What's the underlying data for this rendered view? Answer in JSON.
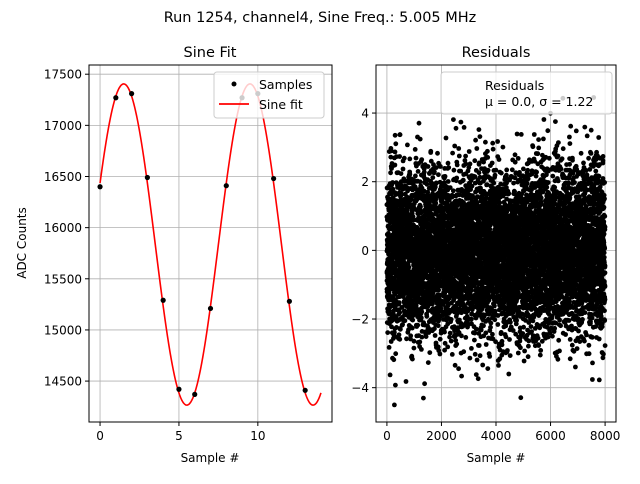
{
  "suptitle": "Run 1254, channel4, Sine Freq.: 5.005 MHz",
  "chart_data": [
    {
      "type": "line",
      "title": "Sine Fit",
      "xlabel": "Sample #",
      "ylabel": "ADC Counts",
      "xlim": [
        -0.7,
        14.7
      ],
      "ylim": [
        14100,
        17590
      ],
      "xticks": [
        0,
        5,
        10
      ],
      "xtick_labels": [
        "0",
        "5",
        "10"
      ],
      "yticks": [
        14500,
        15000,
        15500,
        16000,
        16500,
        17000,
        17500
      ],
      "ytick_labels": [
        "14500",
        "15000",
        "15500",
        "16000",
        "16500",
        "17000",
        "17500"
      ],
      "grid": true,
      "legend": {
        "placement": "top-right",
        "entries": [
          "Samples",
          "Sine fit"
        ]
      },
      "series": [
        {
          "name": "Samples",
          "style": "scatter",
          "color": "#000000",
          "x": [
            0,
            1,
            2,
            3,
            4,
            5,
            6,
            7,
            8,
            9,
            10,
            11,
            12,
            13
          ],
          "y": [
            16400,
            17270,
            17310,
            16490,
            15290,
            14420,
            14370,
            15210,
            16410,
            17270,
            17310,
            16480,
            15280,
            14410
          ]
        },
        {
          "name": "Sine fit",
          "style": "line",
          "color": "#ff0000",
          "x_range": [
            0,
            14
          ],
          "offset": 15835,
          "amplitude": 1570,
          "period": 8,
          "phase_shift": -0.5
        }
      ]
    },
    {
      "type": "scatter",
      "title": "Residuals",
      "xlabel": "Sample #",
      "ylabel": "",
      "xlim": [
        -400,
        8400
      ],
      "ylim": [
        -5,
        5.4
      ],
      "xticks": [
        0,
        2000,
        4000,
        6000,
        8000
      ],
      "xtick_labels": [
        "0",
        "2000",
        "4000",
        "6000",
        "8000"
      ],
      "yticks": [
        -4,
        -2,
        0,
        2,
        4
      ],
      "ytick_labels": [
        "−4",
        "−2",
        "0",
        "2",
        "4"
      ],
      "grid": true,
      "legend": {
        "placement": "top-right",
        "entries": [
          "Residuals",
          "μ = 0.0, σ = 1.22"
        ]
      },
      "series": [
        {
          "name": "Residuals",
          "color": "#000000",
          "n_points": 8000,
          "mu": 0.0,
          "sigma": 1.22
        }
      ]
    }
  ]
}
